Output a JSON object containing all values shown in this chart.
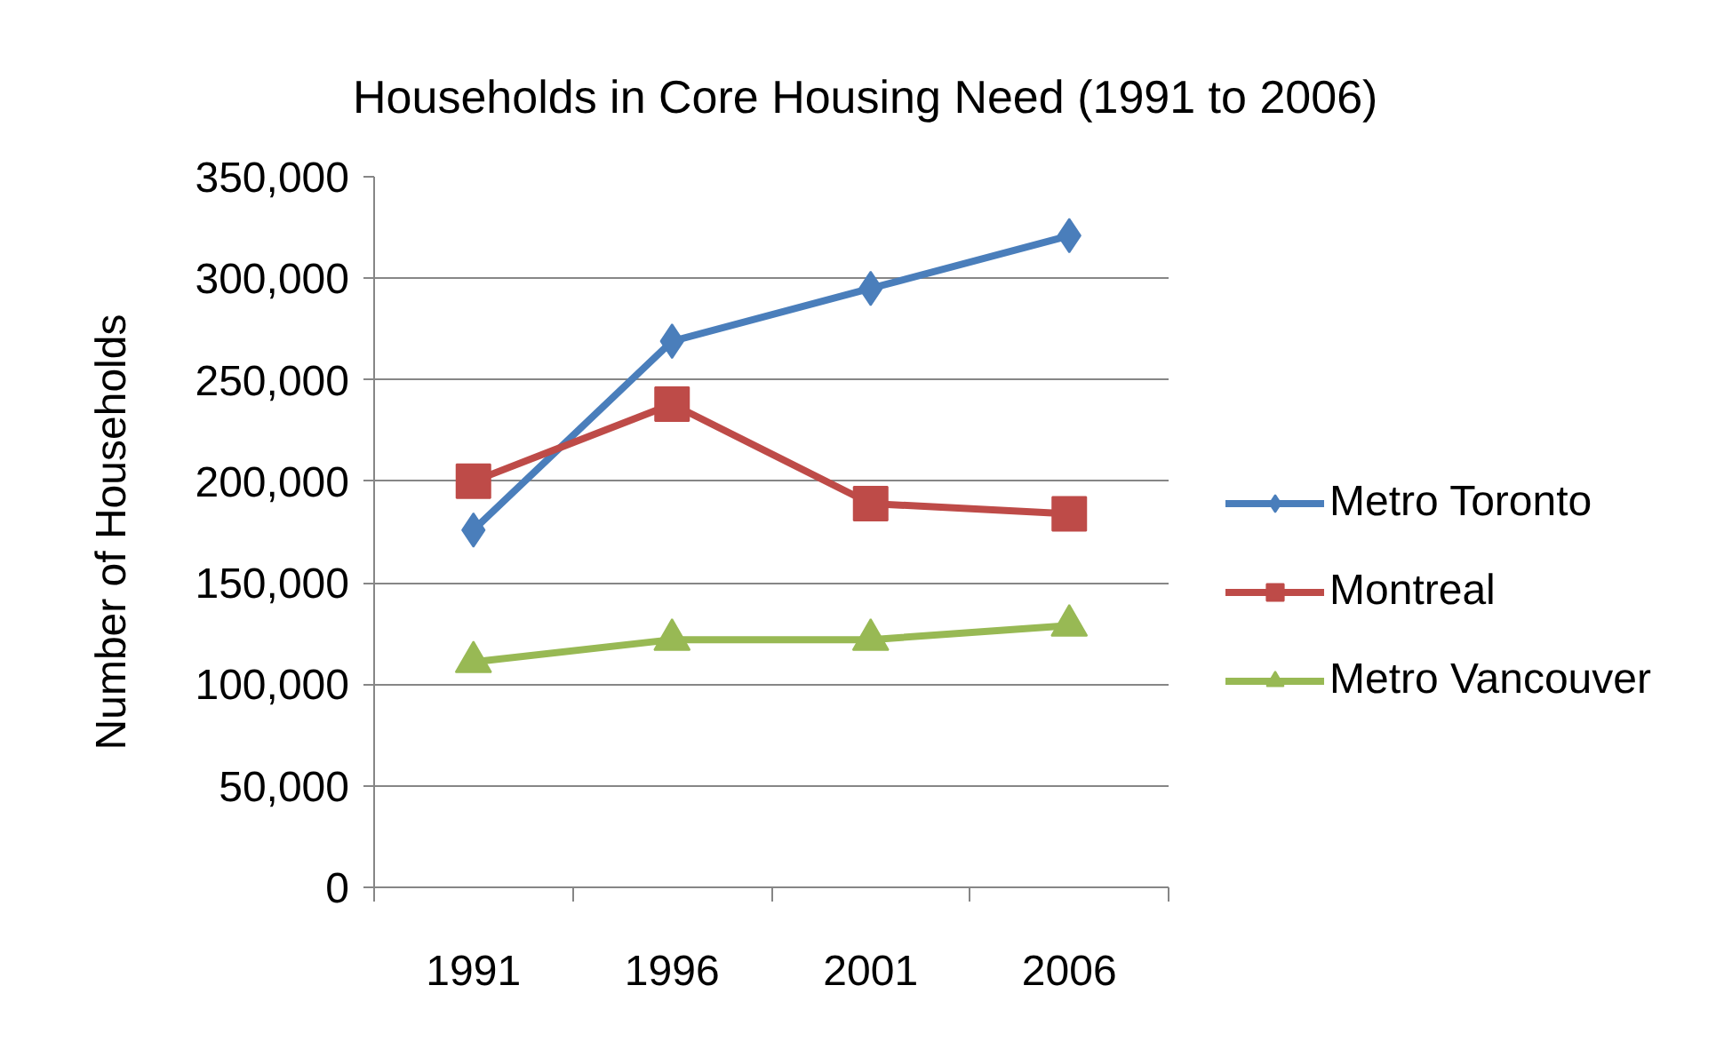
{
  "chart_data": {
    "type": "line",
    "title": "Households in Core Housing Need (1991 to 2006)",
    "ylabel": "Number of Households",
    "categories": [
      "1991",
      "1996",
      "2001",
      "2006"
    ],
    "series": [
      {
        "name": "Metro Toronto",
        "color": "#4a7ebb",
        "marker": "diamond",
        "values": [
          176000,
          269000,
          295000,
          321000
        ]
      },
      {
        "name": "Montreal",
        "color": "#be4b48",
        "marker": "square",
        "values": [
          200000,
          238000,
          189000,
          184000
        ]
      },
      {
        "name": "Metro Vancouver",
        "color": "#98b954",
        "marker": "triangle",
        "values": [
          111000,
          122000,
          122000,
          129000
        ]
      }
    ],
    "ylim": [
      0,
      350000
    ],
    "yticks": [
      0,
      {
        "value": 50000,
        "label": "50,000"
      },
      {
        "value": 100000,
        "label": "100,000"
      },
      {
        "value": 150000,
        "label": "150,000"
      },
      {
        "value": 200000,
        "label": "200,000"
      },
      {
        "value": 250000,
        "label": "250,000"
      },
      {
        "value": 300000,
        "label": "300,000"
      },
      {
        "value": 350000,
        "label": "350,000"
      }
    ],
    "grid": "y",
    "legend": "right",
    "line_style": "solid"
  }
}
